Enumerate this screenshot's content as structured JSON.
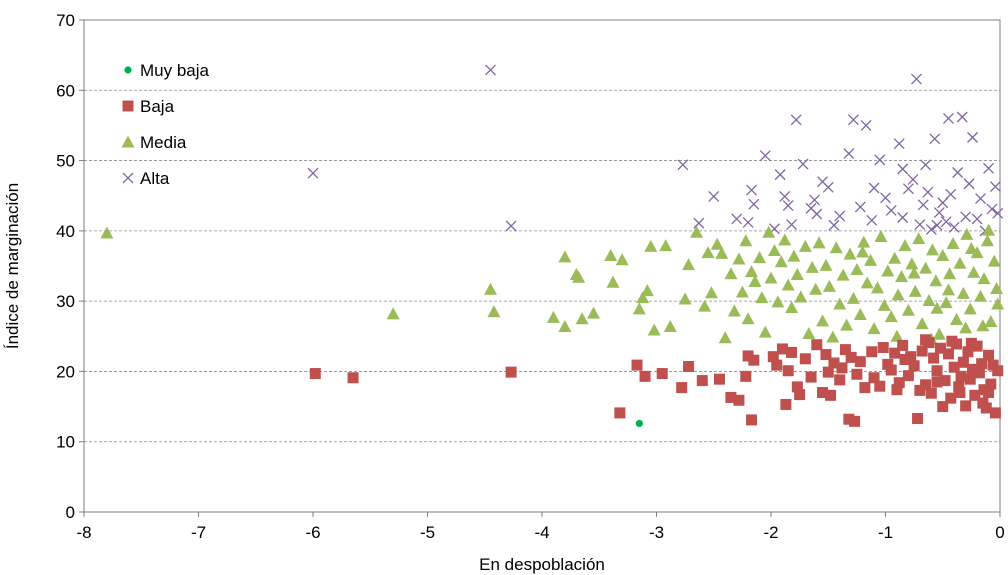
{
  "chart_data": {
    "type": "scatter",
    "title": "",
    "xlabel": "En despoblación",
    "ylabel": "Índice de marginación",
    "xlim": [
      -8,
      0
    ],
    "ylim": [
      0,
      70
    ],
    "x_ticks": [
      -8,
      -7,
      -6,
      -5,
      -4,
      -3,
      -2,
      -1,
      0
    ],
    "y_ticks": [
      0,
      10,
      20,
      30,
      40,
      50,
      60,
      70
    ],
    "grid": "horizontal dashed",
    "legend_position": "top-left inside",
    "series": [
      {
        "name": "Muy baja",
        "marker": "circle",
        "color": "#00B050",
        "points": [
          [
            -3.15,
            12.6
          ]
        ]
      },
      {
        "name": "Baja",
        "marker": "square",
        "color": "#C0504D",
        "points": [
          [
            -5.98,
            19.7
          ],
          [
            -5.65,
            19.1
          ],
          [
            -4.27,
            19.9
          ],
          [
            -3.32,
            14.1
          ],
          [
            -3.17,
            20.9
          ],
          [
            -3.1,
            19.3
          ],
          [
            -2.95,
            19.7
          ],
          [
            -2.78,
            17.7
          ],
          [
            -2.72,
            20.7
          ],
          [
            -2.6,
            18.7
          ],
          [
            -2.45,
            18.9
          ],
          [
            -2.35,
            16.3
          ],
          [
            -2.28,
            15.9
          ],
          [
            -2.22,
            19.3
          ],
          [
            -2.2,
            22.2
          ],
          [
            -2.15,
            21.6
          ],
          [
            -2.17,
            13.1
          ],
          [
            -1.98,
            22.1
          ],
          [
            -1.95,
            20.9
          ],
          [
            -1.9,
            23.2
          ],
          [
            -1.87,
            15.3
          ],
          [
            -1.85,
            20.1
          ],
          [
            -1.82,
            22.7
          ],
          [
            -1.77,
            17.8
          ],
          [
            -1.75,
            16.7
          ],
          [
            -1.7,
            21.8
          ],
          [
            -1.65,
            19.2
          ],
          [
            -1.6,
            23.8
          ],
          [
            -1.55,
            17.0
          ],
          [
            -1.52,
            22.4
          ],
          [
            -1.5,
            19.9
          ],
          [
            -1.48,
            16.6
          ],
          [
            -1.45,
            21.2
          ],
          [
            -1.4,
            18.8
          ],
          [
            -1.38,
            20.5
          ],
          [
            -1.35,
            23.1
          ],
          [
            -1.32,
            13.2
          ],
          [
            -1.3,
            22.0
          ],
          [
            -1.27,
            12.9
          ],
          [
            -1.25,
            19.6
          ],
          [
            -1.22,
            21.4
          ],
          [
            -1.18,
            17.7
          ],
          [
            -1.12,
            22.8
          ],
          [
            -1.1,
            19.1
          ],
          [
            -1.05,
            17.9
          ],
          [
            -1.02,
            23.4
          ],
          [
            -0.98,
            21.0
          ],
          [
            -0.95,
            20.2
          ],
          [
            -0.92,
            22.6
          ],
          [
            -0.88,
            18.4
          ],
          [
            -0.85,
            23.7
          ],
          [
            -0.83,
            21.7
          ],
          [
            -0.8,
            19.4
          ],
          [
            -0.78,
            22.1
          ],
          [
            -0.75,
            20.8
          ],
          [
            -0.72,
            13.3
          ],
          [
            -0.7,
            17.3
          ],
          [
            -0.68,
            22.9
          ],
          [
            -0.65,
            18.1
          ],
          [
            -0.62,
            24.1
          ],
          [
            -0.6,
            16.9
          ],
          [
            -0.58,
            21.9
          ],
          [
            -0.55,
            20.1
          ],
          [
            -0.52,
            23.3
          ],
          [
            -0.5,
            15.0
          ],
          [
            -0.48,
            18.7
          ],
          [
            -0.45,
            22.5
          ],
          [
            -0.43,
            16.2
          ],
          [
            -0.4,
            20.6
          ],
          [
            -0.38,
            23.9
          ],
          [
            -0.36,
            17.8
          ],
          [
            -0.34,
            19.3
          ],
          [
            -0.32,
            21.3
          ],
          [
            -0.3,
            15.1
          ],
          [
            -0.28,
            22.8
          ],
          [
            -0.26,
            18.9
          ],
          [
            -0.24,
            20.3
          ],
          [
            -0.22,
            16.6
          ],
          [
            -0.2,
            23.6
          ],
          [
            -0.18,
            19.8
          ],
          [
            -0.16,
            21.1
          ],
          [
            -0.14,
            17.4
          ],
          [
            -0.12,
            14.8
          ],
          [
            -0.1,
            22.3
          ],
          [
            -0.08,
            18.2
          ],
          [
            -0.06,
            20.9
          ],
          [
            -0.04,
            14.1
          ],
          [
            -0.02,
            20.1
          ],
          [
            -0.55,
            18.5
          ],
          [
            -0.42,
            24.3
          ],
          [
            -0.65,
            24.5
          ],
          [
            -0.35,
            17.0
          ],
          [
            -0.9,
            17.4
          ],
          [
            -0.25,
            24.0
          ],
          [
            -0.15,
            15.5
          ],
          [
            -0.1,
            17.0
          ]
        ]
      },
      {
        "name": "Media",
        "marker": "triangle",
        "color": "#9BBB59",
        "points": [
          [
            -7.8,
            39.7
          ],
          [
            -5.3,
            28.2
          ],
          [
            -4.45,
            31.7
          ],
          [
            -4.42,
            28.5
          ],
          [
            -3.9,
            27.7
          ],
          [
            -3.8,
            36.3
          ],
          [
            -3.8,
            26.4
          ],
          [
            -3.7,
            33.8
          ],
          [
            -3.68,
            33.4
          ],
          [
            -3.65,
            27.5
          ],
          [
            -3.55,
            28.3
          ],
          [
            -3.4,
            36.5
          ],
          [
            -3.38,
            32.7
          ],
          [
            -3.3,
            35.9
          ],
          [
            -3.15,
            28.9
          ],
          [
            -3.12,
            30.5
          ],
          [
            -3.08,
            31.5
          ],
          [
            -3.05,
            37.8
          ],
          [
            -3.02,
            25.9
          ],
          [
            -2.92,
            37.9
          ],
          [
            -2.88,
            26.4
          ],
          [
            -2.75,
            30.3
          ],
          [
            -2.72,
            35.2
          ],
          [
            -2.65,
            39.8
          ],
          [
            -2.58,
            29.3
          ],
          [
            -2.55,
            36.9
          ],
          [
            -2.52,
            31.2
          ],
          [
            -2.47,
            38.1
          ],
          [
            -2.43,
            36.8
          ],
          [
            -2.4,
            24.8
          ],
          [
            -2.35,
            33.9
          ],
          [
            -2.32,
            28.6
          ],
          [
            -2.28,
            36.0
          ],
          [
            -2.25,
            31.3
          ],
          [
            -2.22,
            38.6
          ],
          [
            -2.2,
            27.5
          ],
          [
            -2.17,
            34.2
          ],
          [
            -2.14,
            32.8
          ],
          [
            -2.1,
            36.2
          ],
          [
            -2.08,
            30.5
          ],
          [
            -2.05,
            25.6
          ],
          [
            -2.02,
            39.8
          ],
          [
            -2.0,
            33.3
          ],
          [
            -1.97,
            37.2
          ],
          [
            -1.94,
            29.9
          ],
          [
            -1.91,
            35.6
          ],
          [
            -1.88,
            38.7
          ],
          [
            -1.85,
            32.3
          ],
          [
            -1.82,
            29.1
          ],
          [
            -1.8,
            36.4
          ],
          [
            -1.77,
            33.8
          ],
          [
            -1.74,
            30.6
          ],
          [
            -1.7,
            37.8
          ],
          [
            -1.67,
            25.4
          ],
          [
            -1.64,
            34.8
          ],
          [
            -1.61,
            31.7
          ],
          [
            -1.58,
            38.3
          ],
          [
            -1.55,
            27.2
          ],
          [
            -1.52,
            35.1
          ],
          [
            -1.49,
            32.1
          ],
          [
            -1.46,
            24.9
          ],
          [
            -1.43,
            37.6
          ],
          [
            -1.4,
            29.6
          ],
          [
            -1.37,
            33.7
          ],
          [
            -1.34,
            26.6
          ],
          [
            -1.31,
            36.7
          ],
          [
            -1.28,
            30.4
          ],
          [
            -1.25,
            34.5
          ],
          [
            -1.22,
            28.1
          ],
          [
            -1.19,
            38.4
          ],
          [
            -1.16,
            32.6
          ],
          [
            -1.13,
            35.8
          ],
          [
            -1.1,
            26.1
          ],
          [
            -1.07,
            31.9
          ],
          [
            -1.04,
            39.2
          ],
          [
            -1.01,
            29.4
          ],
          [
            -0.98,
            34.3
          ],
          [
            -0.95,
            27.8
          ],
          [
            -0.92,
            36.1
          ],
          [
            -0.89,
            30.9
          ],
          [
            -0.86,
            33.5
          ],
          [
            -0.83,
            37.9
          ],
          [
            -0.8,
            28.7
          ],
          [
            -0.77,
            35.3
          ],
          [
            -0.74,
            31.4
          ],
          [
            -0.71,
            38.9
          ],
          [
            -0.68,
            26.8
          ],
          [
            -0.65,
            34.7
          ],
          [
            -0.62,
            30.1
          ],
          [
            -0.59,
            37.3
          ],
          [
            -0.56,
            32.9
          ],
          [
            -0.53,
            25.3
          ],
          [
            -0.5,
            36.5
          ],
          [
            -0.47,
            29.8
          ],
          [
            -0.44,
            33.9
          ],
          [
            -0.41,
            38.2
          ],
          [
            -0.38,
            27.4
          ],
          [
            -0.35,
            35.4
          ],
          [
            -0.32,
            31.1
          ],
          [
            -0.29,
            39.5
          ],
          [
            -0.26,
            28.9
          ],
          [
            -0.23,
            34.1
          ],
          [
            -0.2,
            36.9
          ],
          [
            -0.17,
            30.7
          ],
          [
            -0.14,
            33.2
          ],
          [
            -0.11,
            38.6
          ],
          [
            -0.08,
            27.1
          ],
          [
            -0.05,
            35.7
          ],
          [
            -0.03,
            31.8
          ],
          [
            -0.02,
            29.6
          ],
          [
            -0.1,
            40.1
          ],
          [
            -0.3,
            26.2
          ],
          [
            -0.6,
            24.6
          ],
          [
            -0.9,
            25.0
          ],
          [
            -1.2,
            37.0
          ],
          [
            -0.45,
            31.6
          ],
          [
            -0.75,
            34.0
          ],
          [
            -0.15,
            26.5
          ],
          [
            -0.25,
            37.5
          ],
          [
            -0.55,
            29.0
          ]
        ]
      },
      {
        "name": "Alta",
        "marker": "x",
        "color": "#8064A2",
        "points": [
          [
            -6.0,
            48.2
          ],
          [
            -4.45,
            62.9
          ],
          [
            -4.27,
            40.7
          ],
          [
            -2.77,
            49.4
          ],
          [
            -2.63,
            41.1
          ],
          [
            -2.5,
            44.9
          ],
          [
            -2.3,
            41.7
          ],
          [
            -2.17,
            45.8
          ],
          [
            -2.15,
            43.8
          ],
          [
            -2.2,
            41.2
          ],
          [
            -2.05,
            50.7
          ],
          [
            -1.97,
            40.3
          ],
          [
            -1.92,
            48.0
          ],
          [
            -1.88,
            44.9
          ],
          [
            -1.85,
            43.6
          ],
          [
            -1.82,
            40.9
          ],
          [
            -1.78,
            55.8
          ],
          [
            -1.72,
            49.5
          ],
          [
            -1.65,
            43.2
          ],
          [
            -1.62,
            44.4
          ],
          [
            -1.6,
            42.4
          ],
          [
            -1.55,
            47.0
          ],
          [
            -1.5,
            46.2
          ],
          [
            -1.45,
            40.8
          ],
          [
            -1.4,
            42.1
          ],
          [
            -1.32,
            51.0
          ],
          [
            -1.28,
            55.8
          ],
          [
            -1.22,
            43.4
          ],
          [
            -1.17,
            55.0
          ],
          [
            -1.12,
            41.5
          ],
          [
            -1.05,
            50.1
          ],
          [
            -1.0,
            44.7
          ],
          [
            -0.95,
            42.9
          ],
          [
            -0.88,
            52.4
          ],
          [
            -0.85,
            48.8
          ],
          [
            -0.8,
            46.0
          ],
          [
            -0.76,
            47.3
          ],
          [
            -0.73,
            61.6
          ],
          [
            -0.7,
            40.9
          ],
          [
            -0.67,
            43.7
          ],
          [
            -0.63,
            45.5
          ],
          [
            -0.6,
            40.2
          ],
          [
            -0.57,
            53.1
          ],
          [
            -0.53,
            42.6
          ],
          [
            -0.5,
            44.0
          ],
          [
            -0.47,
            41.3
          ],
          [
            -0.43,
            45.2
          ],
          [
            -0.4,
            40.5
          ],
          [
            -0.37,
            48.3
          ],
          [
            -0.33,
            56.2
          ],
          [
            -0.3,
            42.0
          ],
          [
            -0.27,
            46.7
          ],
          [
            -0.24,
            53.3
          ],
          [
            -0.2,
            41.7
          ],
          [
            -0.17,
            44.6
          ],
          [
            -0.13,
            40.0
          ],
          [
            -0.1,
            48.9
          ],
          [
            -0.07,
            43.1
          ],
          [
            -0.04,
            46.3
          ],
          [
            -0.02,
            42.5
          ],
          [
            -0.45,
            56.0
          ],
          [
            -0.55,
            40.8
          ],
          [
            -0.85,
            41.9
          ],
          [
            -1.1,
            46.1
          ],
          [
            -0.65,
            49.4
          ]
        ]
      }
    ]
  }
}
